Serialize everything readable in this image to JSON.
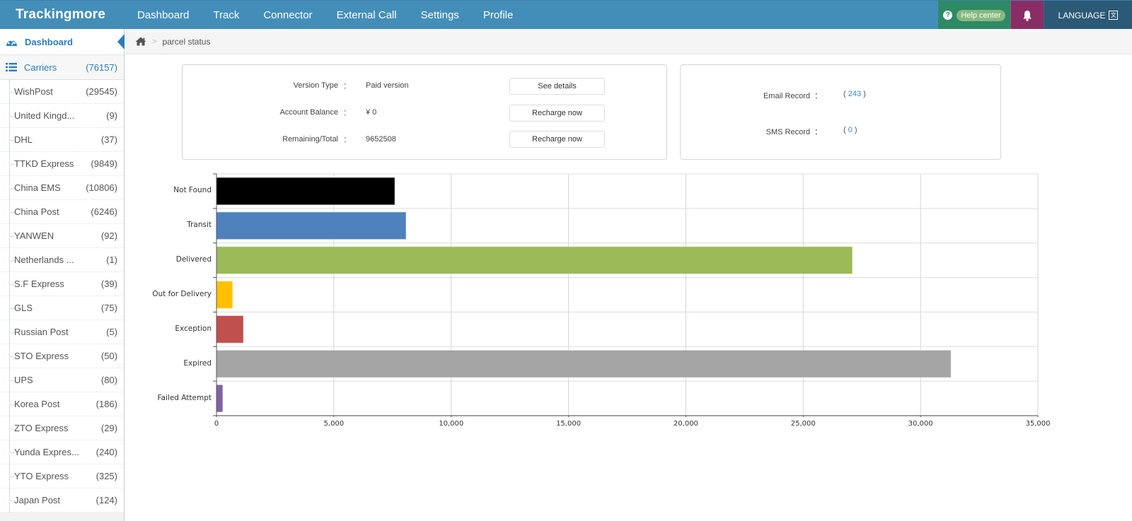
{
  "topbar": {
    "brand": "Trackingmore",
    "nav": [
      "Dashboard",
      "Track",
      "Connector",
      "External Call",
      "Settings",
      "Profile"
    ],
    "help_label": "Help center",
    "help_icon": "question-circle-icon",
    "bell_icon": "bell-icon",
    "language_label": "LANGUAGE",
    "language_icon": "translate-icon",
    "colors": {
      "bar": "#438eb9",
      "help": "#2e8965",
      "bell": "#892e65",
      "language": "#2c5976"
    }
  },
  "sidebar": {
    "dashboard_label": "Dashboard",
    "carriers_label": "Carriers",
    "carriers_count": "(76157)",
    "carriers": [
      {
        "name": "WishPost",
        "count": "(29545)"
      },
      {
        "name": "United Kingd...",
        "count": "(9)"
      },
      {
        "name": "DHL",
        "count": "(37)"
      },
      {
        "name": "TTKD Express",
        "count": "(9849)"
      },
      {
        "name": "China EMS",
        "count": "(10806)"
      },
      {
        "name": "China Post",
        "count": "(6246)"
      },
      {
        "name": "YANWEN",
        "count": "(92)"
      },
      {
        "name": "Netherlands ...",
        "count": "(1)"
      },
      {
        "name": "S.F Express",
        "count": "(39)"
      },
      {
        "name": "GLS",
        "count": "(75)"
      },
      {
        "name": "Russian Post",
        "count": "(5)"
      },
      {
        "name": "STO Express",
        "count": "(50)"
      },
      {
        "name": "UPS",
        "count": "(80)"
      },
      {
        "name": "Korea Post",
        "count": "(186)"
      },
      {
        "name": "ZTO Express",
        "count": "(29)"
      },
      {
        "name": "Yunda Expres...",
        "count": "(240)"
      },
      {
        "name": "YTO Express",
        "count": "(325)"
      },
      {
        "name": "Japan Post",
        "count": "(124)"
      }
    ]
  },
  "breadcrumb": {
    "home_icon": "home-icon",
    "current": "parcel status",
    "separator": ">"
  },
  "account": {
    "rows": [
      {
        "label": "Version Type",
        "value": "Paid version",
        "button": "See details"
      },
      {
        "label": "Account Balance",
        "value": "¥ 0",
        "button": "Recharge now"
      },
      {
        "label": "Remaining/Total",
        "value": "9652508",
        "button": "Recharge now"
      }
    ],
    "colon": "："
  },
  "records": {
    "email_label": "Email Record",
    "email_value": "243",
    "sms_label": "SMS Record",
    "sms_value": "0",
    "open": "(",
    "close": ")"
  },
  "chart_data": {
    "type": "bar",
    "orientation": "horizontal",
    "title": "",
    "xlabel": "",
    "ylabel": "",
    "categories": [
      "Not Found",
      "Transit",
      "Delivered",
      "Out for Delivery",
      "Exception",
      "Expired",
      "Failed Attempt"
    ],
    "values": [
      7600,
      8080,
      27100,
      690,
      1150,
      31300,
      270
    ],
    "colors": [
      "#000000",
      "#4f81bd",
      "#9bbb59",
      "#ffc000",
      "#c0504d",
      "#a5a5a5",
      "#8064a2"
    ],
    "xlim": [
      0,
      35000
    ],
    "xticks": [
      0,
      5000,
      10000,
      15000,
      20000,
      25000,
      30000,
      35000
    ],
    "xtick_labels": [
      "0",
      "5,000",
      "10,000",
      "15,000",
      "20,000",
      "25,000",
      "30,000",
      "35,000"
    ],
    "grid": true,
    "legend": "none"
  }
}
